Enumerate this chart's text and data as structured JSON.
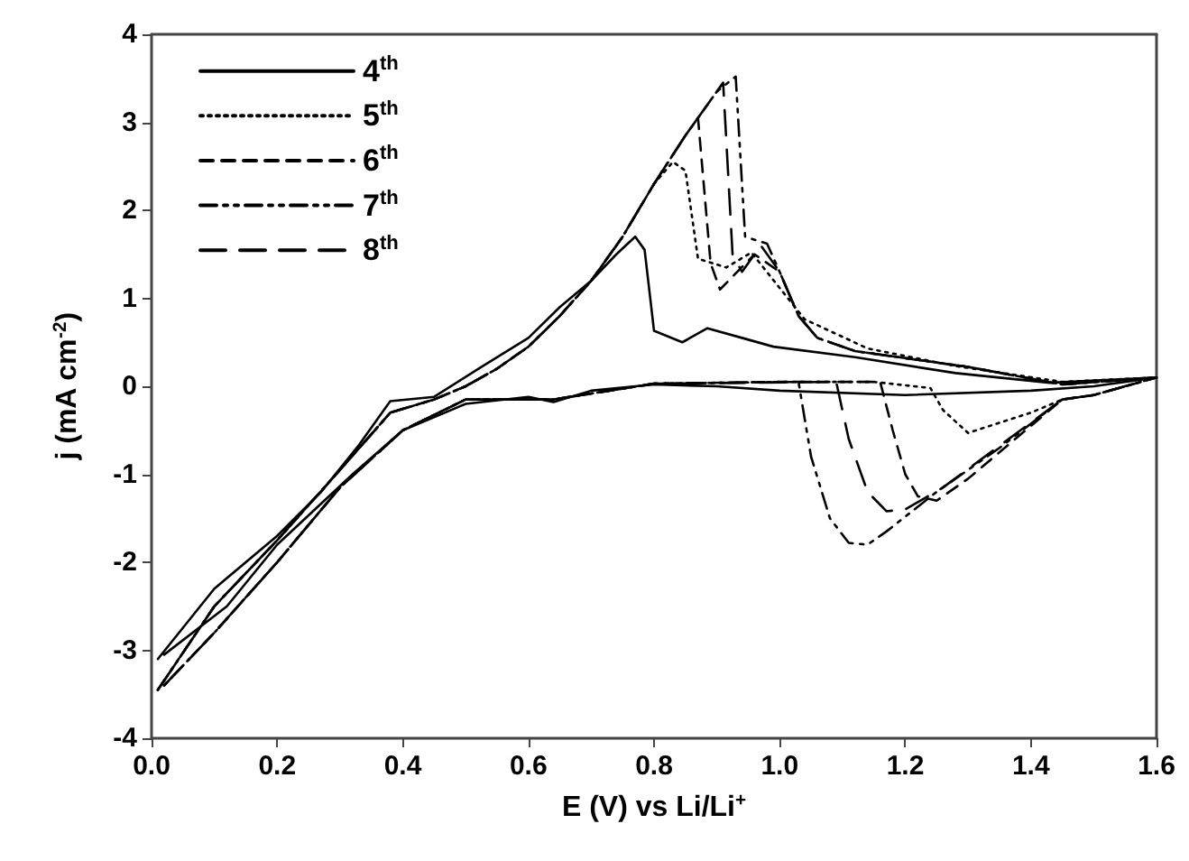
{
  "chart_data": {
    "type": "line",
    "xlabel": "E (V) vs Li/Li$^{+}$",
    "ylabel": "j (mA cm$^{-2}$)",
    "xlim": [
      0,
      1.6
    ],
    "xticks": [
      {
        "value": 0,
        "label": "0.0"
      },
      {
        "value": 0.2,
        "label": "0.2"
      },
      {
        "value": 0.4,
        "label": "0.4"
      },
      {
        "value": 0.6,
        "label": "0.6"
      },
      {
        "value": 0.8,
        "label": "0.8"
      },
      {
        "value": 1,
        "label": "1.0"
      },
      {
        "value": 1.2,
        "label": "1.2"
      },
      {
        "value": 1.4,
        "label": "1.4"
      },
      {
        "value": 1.6,
        "label": "1.6"
      }
    ],
    "ylim": [
      -4,
      4
    ],
    "yticks": [
      -4,
      -3,
      -2,
      -1,
      0,
      1,
      2,
      3,
      4
    ],
    "grid": false,
    "legend": "top left",
    "marker": "none",
    "series": [
      {
        "name": "4$^{th}$",
        "color": "#000000",
        "line_style": "solid",
        "x": [
          0.01,
          0.1,
          0.2,
          0.27,
          0.33,
          0.38,
          0.45,
          0.525,
          0.6,
          0.65,
          0.7,
          0.74,
          0.77,
          0.785,
          0.8,
          0.845,
          0.885,
          0.94,
          0.99,
          1.12,
          1.28,
          1.43,
          1.6,
          1.5,
          1.4,
          1.2,
          1.0,
          0.9,
          0.8,
          0.7,
          0.64,
          0.6,
          0.5,
          0.4,
          0.32,
          0.2,
          0.12,
          0.02
        ],
        "values": [
          -3.1,
          -2.3,
          -1.7,
          -1.2,
          -0.67,
          -0.17,
          -0.12,
          0.22,
          0.55,
          0.9,
          1.2,
          1.5,
          1.7,
          1.55,
          0.63,
          0.5,
          0.66,
          0.55,
          0.45,
          0.33,
          0.15,
          0.04,
          0.1,
          0.0,
          -0.05,
          -0.1,
          -0.05,
          0.0,
          0.02,
          -0.05,
          -0.18,
          -0.12,
          -0.2,
          -0.5,
          -1.0,
          -1.8,
          -2.5,
          -3.05
        ]
      },
      {
        "name": "5$^{th}$",
        "color": "#000000",
        "line_style": "dotted",
        "x": [
          0.01,
          0.1,
          0.2,
          0.3,
          0.38,
          0.45,
          0.5,
          0.55,
          0.6,
          0.65,
          0.7,
          0.75,
          0.8,
          0.83,
          0.85,
          0.87,
          0.915,
          0.955,
          1.04,
          1.14,
          1.28,
          1.45,
          1.6,
          1.5,
          1.45,
          1.4,
          1.3,
          1.26,
          1.24,
          1.15,
          1.0,
          0.8,
          0.64,
          0.5,
          0.4,
          0.3,
          0.2,
          0.1,
          0.02
        ],
        "values": [
          -3.45,
          -2.5,
          -1.75,
          -0.95,
          -0.3,
          -0.15,
          0.0,
          0.2,
          0.45,
          0.8,
          1.2,
          1.7,
          2.3,
          2.55,
          2.45,
          1.45,
          1.35,
          1.52,
          0.76,
          0.43,
          0.23,
          0.05,
          0.1,
          -0.1,
          -0.15,
          -0.3,
          -0.53,
          -0.27,
          -0.02,
          0.05,
          0.05,
          0.03,
          -0.15,
          -0.15,
          -0.5,
          -1.15,
          -2.0,
          -2.8,
          -3.4
        ]
      },
      {
        "name": "6$^{th}$",
        "color": "#000000",
        "line_style": "dashed",
        "x": [
          0.01,
          0.1,
          0.2,
          0.3,
          0.38,
          0.45,
          0.5,
          0.55,
          0.6,
          0.65,
          0.7,
          0.75,
          0.8,
          0.85,
          0.87,
          0.89,
          0.905,
          0.96,
          1.0,
          1.03,
          1.06,
          1.12,
          1.3,
          1.45,
          1.6,
          1.5,
          1.45,
          1.3,
          1.25,
          1.22,
          1.2,
          1.18,
          1.16,
          1.0,
          0.8,
          0.64,
          0.5,
          0.4,
          0.3,
          0.2,
          0.1,
          0.02
        ],
        "values": [
          -3.45,
          -2.5,
          -1.75,
          -0.95,
          -0.3,
          -0.15,
          0.0,
          0.2,
          0.45,
          0.8,
          1.2,
          1.7,
          2.3,
          2.85,
          3.05,
          1.4,
          1.1,
          1.5,
          1.3,
          0.8,
          0.55,
          0.4,
          0.22,
          0.02,
          0.1,
          -0.1,
          -0.15,
          -1.05,
          -1.3,
          -1.25,
          -1.0,
          -0.5,
          0.05,
          0.05,
          0.03,
          -0.15,
          -0.15,
          -0.5,
          -1.15,
          -2.0,
          -2.8,
          -3.4
        ]
      },
      {
        "name": "7$^{th}$",
        "color": "#000000",
        "line_style": "dashed",
        "x": [
          0.01,
          0.1,
          0.2,
          0.3,
          0.38,
          0.45,
          0.5,
          0.55,
          0.6,
          0.65,
          0.7,
          0.75,
          0.8,
          0.85,
          0.9,
          0.93,
          0.945,
          0.98,
          1.0,
          1.03,
          1.06,
          1.12,
          1.3,
          1.45,
          1.6,
          1.5,
          1.45,
          1.35,
          1.25,
          1.17,
          1.14,
          1.11,
          1.08,
          1.05,
          1.03,
          0.8,
          0.64,
          0.5,
          0.4,
          0.3,
          0.2,
          0.1,
          0.02
        ],
        "values": [
          -3.45,
          -2.5,
          -1.75,
          -0.95,
          -0.3,
          -0.15,
          0.0,
          0.2,
          0.45,
          0.8,
          1.2,
          1.7,
          2.3,
          2.85,
          3.35,
          3.52,
          1.7,
          1.62,
          1.3,
          0.8,
          0.55,
          0.4,
          0.22,
          0.02,
          0.1,
          -0.1,
          -0.15,
          -0.7,
          -1.2,
          -1.65,
          -1.8,
          -1.78,
          -1.5,
          -0.8,
          0.05,
          0.03,
          -0.15,
          -0.15,
          -0.5,
          -1.15,
          -2.0,
          -2.8,
          -3.4
        ]
      },
      {
        "name": "8$^{th}$",
        "color": "#000000",
        "line_style": "dashed",
        "x": [
          0.01,
          0.1,
          0.2,
          0.3,
          0.38,
          0.45,
          0.5,
          0.55,
          0.6,
          0.65,
          0.7,
          0.75,
          0.8,
          0.85,
          0.9,
          0.91,
          0.925,
          0.94,
          0.97,
          1.0,
          1.03,
          1.06,
          1.12,
          1.3,
          1.45,
          1.6,
          1.5,
          1.45,
          1.26,
          1.2,
          1.17,
          1.14,
          1.11,
          1.09,
          0.8,
          0.64,
          0.5,
          0.4,
          0.3,
          0.2,
          0.1,
          0.02
        ],
        "values": [
          -3.45,
          -2.5,
          -1.75,
          -0.95,
          -0.3,
          -0.15,
          0.0,
          0.2,
          0.45,
          0.8,
          1.2,
          1.7,
          2.3,
          2.85,
          3.35,
          3.45,
          1.5,
          1.3,
          1.6,
          1.3,
          0.8,
          0.55,
          0.4,
          0.22,
          0.02,
          0.1,
          -0.1,
          -0.15,
          -1.15,
          -1.4,
          -1.42,
          -1.2,
          -0.6,
          0.05,
          0.03,
          -0.15,
          -0.15,
          -0.5,
          -1.15,
          -2.0,
          -2.8,
          -3.4
        ]
      }
    ]
  }
}
